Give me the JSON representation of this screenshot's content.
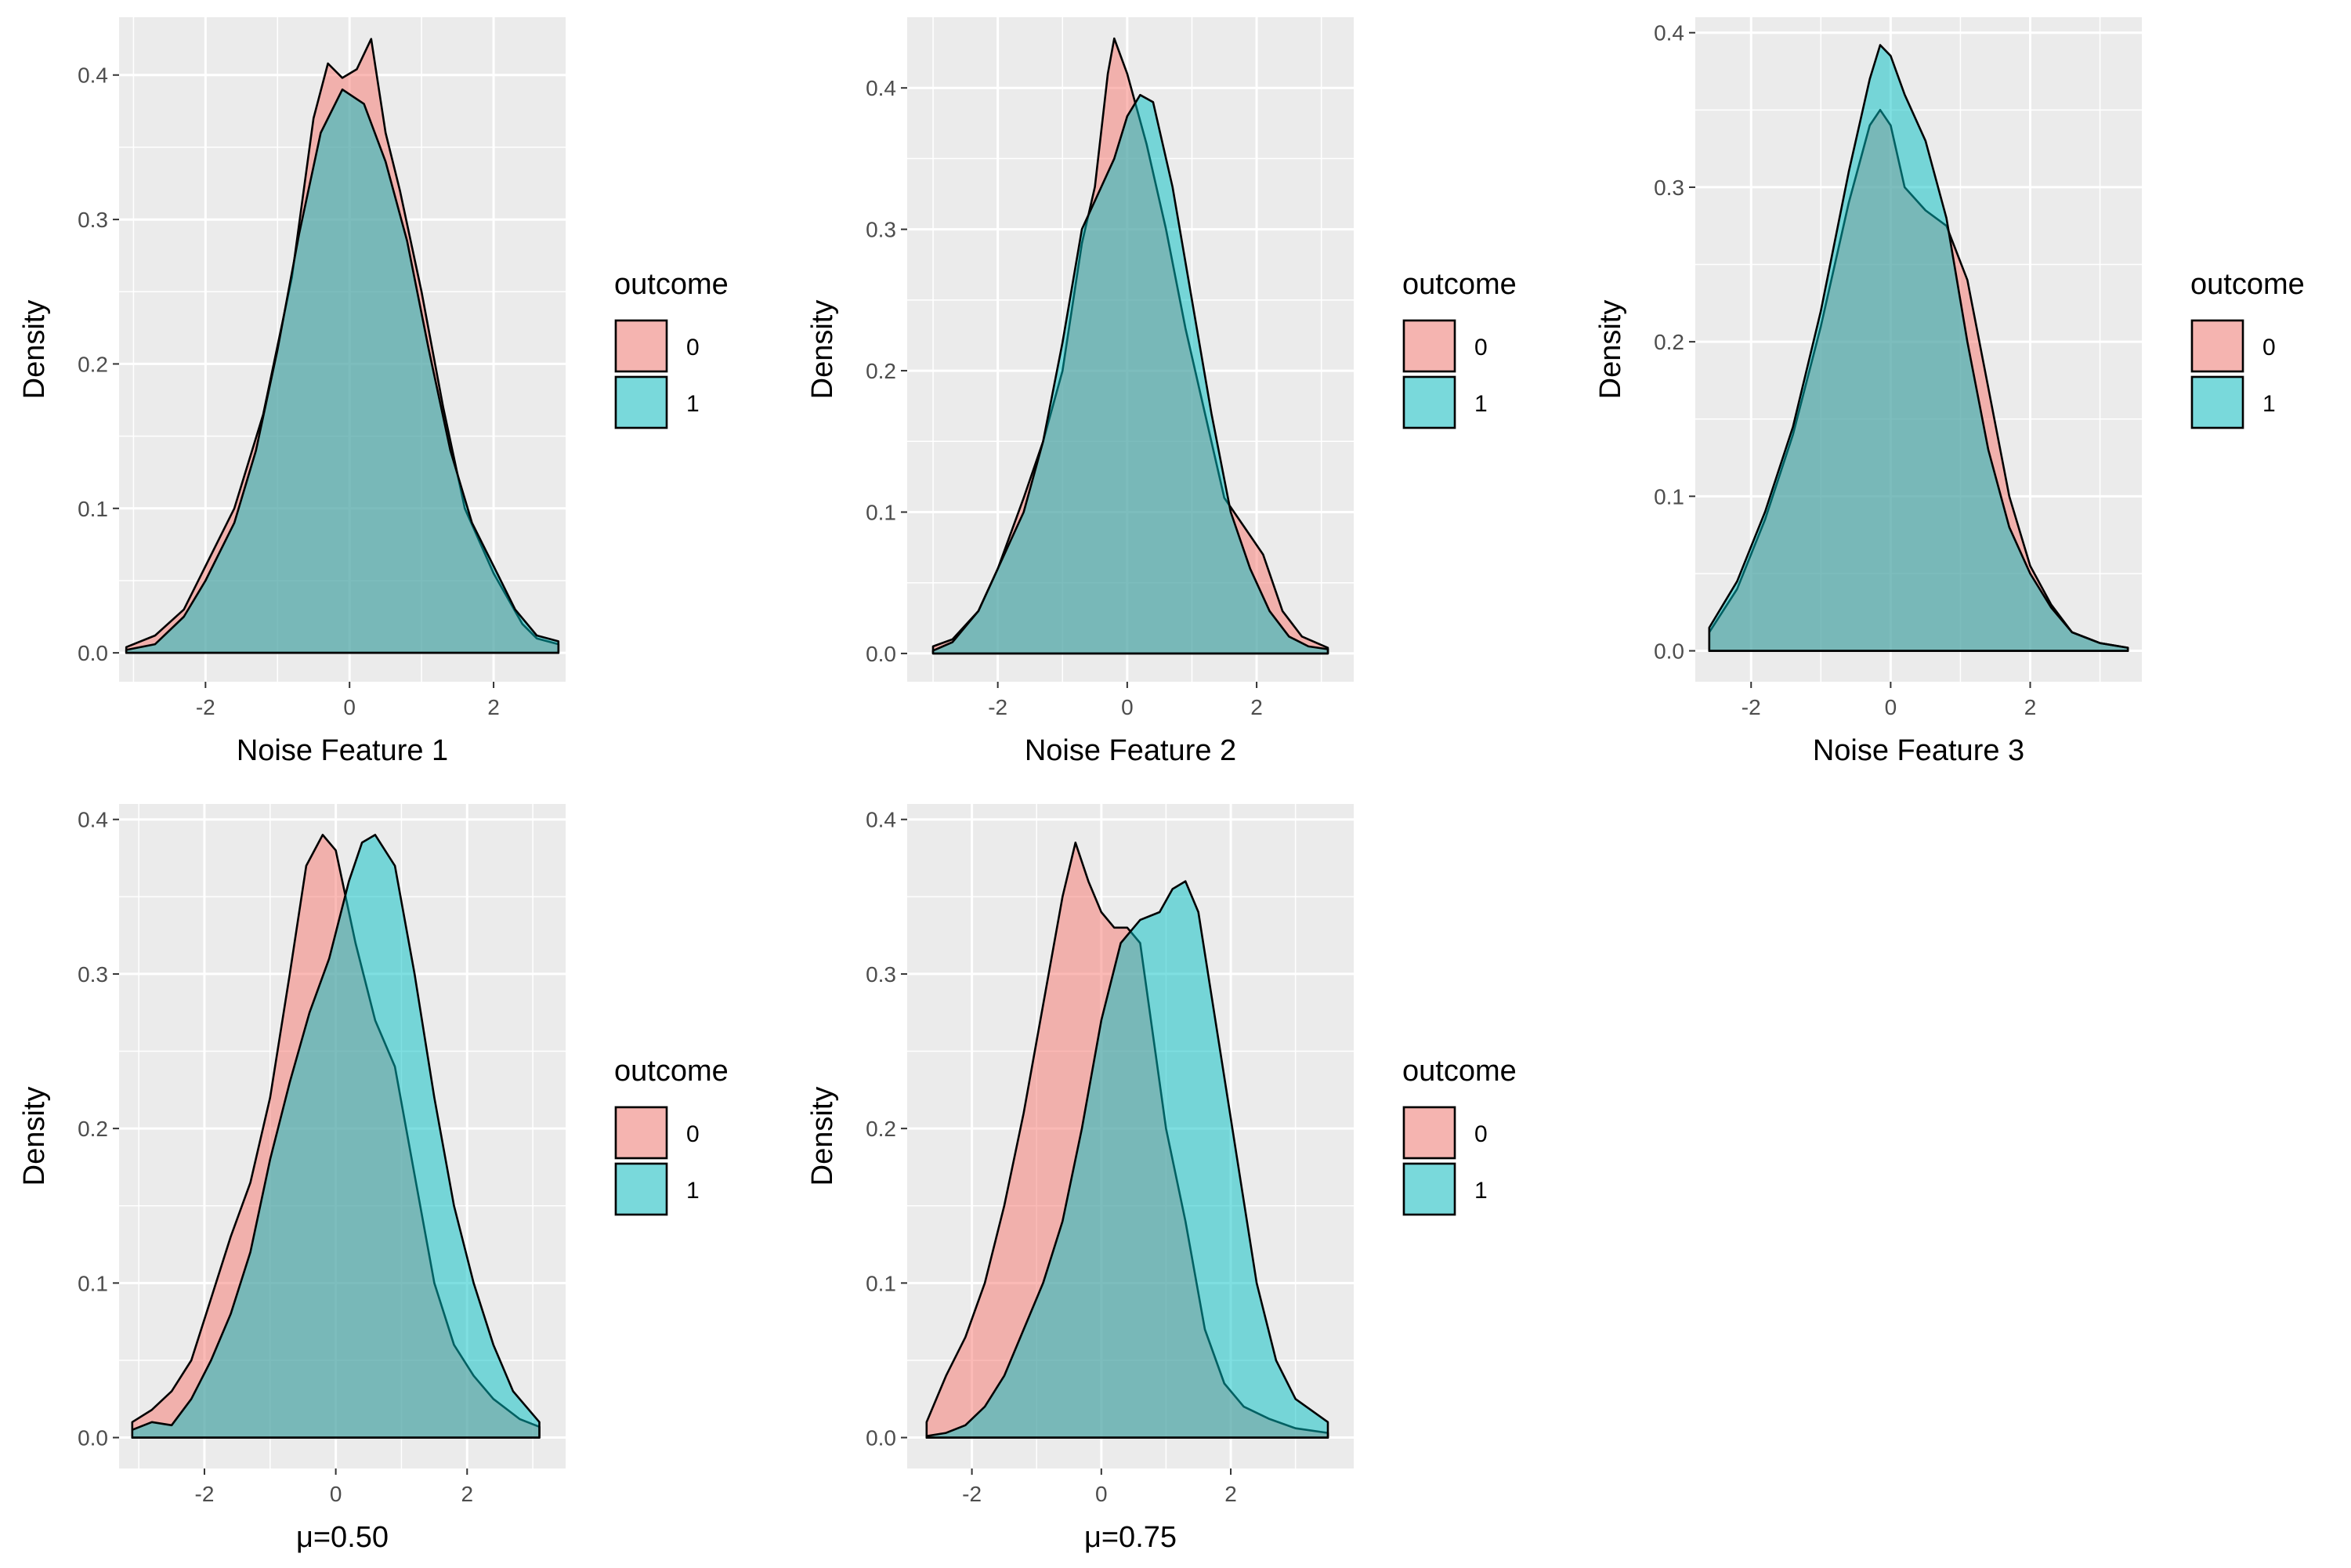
{
  "chart_data": [
    {
      "type": "area",
      "subtype": "density",
      "title": "",
      "xlabel": "Noise Feature 1",
      "ylabel": "Density",
      "xlim": [
        -3.2,
        3.0
      ],
      "ylim": [
        -0.02,
        0.44
      ],
      "xticks": [
        -2,
        0,
        2
      ],
      "xtick_labels": [
        "-2",
        "0",
        "2"
      ],
      "yticks": [
        0,
        0.1,
        0.2,
        0.3,
        0.4
      ],
      "ytick_labels": [
        "0.0",
        "0.1",
        "0.2",
        "0.3",
        "0.4"
      ],
      "legend": {
        "title": "outcome",
        "entries": [
          "0",
          "1"
        ],
        "position": "right"
      },
      "series": [
        {
          "name": "0",
          "color": "#F8766D",
          "x": [
            -3.1,
            -2.7,
            -2.3,
            -2.0,
            -1.6,
            -1.2,
            -0.8,
            -0.5,
            -0.3,
            -0.1,
            0.1,
            0.3,
            0.5,
            0.7,
            1.0,
            1.3,
            1.6,
            2.0,
            2.4,
            2.6,
            2.9
          ],
          "y": [
            0.004,
            0.012,
            0.03,
            0.06,
            0.1,
            0.165,
            0.26,
            0.37,
            0.408,
            0.398,
            0.404,
            0.425,
            0.36,
            0.32,
            0.25,
            0.17,
            0.1,
            0.055,
            0.02,
            0.01,
            0.006
          ]
        },
        {
          "name": "1",
          "color": "#00BFC4",
          "x": [
            -3.1,
            -2.7,
            -2.3,
            -2.0,
            -1.6,
            -1.3,
            -1.0,
            -0.7,
            -0.4,
            -0.1,
            0.2,
            0.5,
            0.8,
            1.1,
            1.4,
            1.7,
            2.0,
            2.3,
            2.6,
            2.9
          ],
          "y": [
            0.002,
            0.006,
            0.025,
            0.05,
            0.09,
            0.14,
            0.21,
            0.29,
            0.36,
            0.39,
            0.38,
            0.34,
            0.285,
            0.21,
            0.14,
            0.09,
            0.06,
            0.03,
            0.012,
            0.008
          ]
        }
      ]
    },
    {
      "type": "area",
      "subtype": "density",
      "title": "",
      "xlabel": "Noise Feature 2",
      "ylabel": "Density",
      "xlim": [
        -3.4,
        3.5
      ],
      "ylim": [
        -0.02,
        0.45
      ],
      "xticks": [
        -2,
        0,
        2
      ],
      "xtick_labels": [
        "-2",
        "0",
        "2"
      ],
      "yticks": [
        0,
        0.1,
        0.2,
        0.3,
        0.4
      ],
      "ytick_labels": [
        "0.0",
        "0.1",
        "0.2",
        "0.3",
        "0.4"
      ],
      "legend": {
        "title": "outcome",
        "entries": [
          "0",
          "1"
        ],
        "position": "right"
      },
      "series": [
        {
          "name": "0",
          "color": "#F8766D",
          "x": [
            -3.0,
            -2.7,
            -2.3,
            -2.0,
            -1.6,
            -1.3,
            -1.0,
            -0.7,
            -0.5,
            -0.3,
            -0.2,
            0.0,
            0.3,
            0.6,
            0.9,
            1.2,
            1.5,
            1.8,
            2.1,
            2.4,
            2.7,
            3.1
          ],
          "y": [
            0.005,
            0.01,
            0.03,
            0.06,
            0.11,
            0.15,
            0.2,
            0.29,
            0.33,
            0.41,
            0.435,
            0.41,
            0.36,
            0.3,
            0.23,
            0.17,
            0.11,
            0.09,
            0.07,
            0.03,
            0.012,
            0.004
          ]
        },
        {
          "name": "1",
          "color": "#00BFC4",
          "x": [
            -3.0,
            -2.7,
            -2.3,
            -2.0,
            -1.6,
            -1.3,
            -1.0,
            -0.7,
            -0.4,
            -0.2,
            0.0,
            0.2,
            0.4,
            0.7,
            1.0,
            1.3,
            1.6,
            1.9,
            2.2,
            2.5,
            2.8,
            3.1
          ],
          "y": [
            0.002,
            0.008,
            0.03,
            0.06,
            0.1,
            0.15,
            0.22,
            0.3,
            0.33,
            0.35,
            0.38,
            0.395,
            0.39,
            0.33,
            0.25,
            0.17,
            0.1,
            0.06,
            0.03,
            0.012,
            0.005,
            0.003
          ]
        }
      ]
    },
    {
      "type": "area",
      "subtype": "density",
      "title": "",
      "xlabel": "Noise Feature 3",
      "ylabel": "Density",
      "xlim": [
        -2.8,
        3.6
      ],
      "ylim": [
        -0.02,
        0.41
      ],
      "xticks": [
        -2,
        0,
        2
      ],
      "xtick_labels": [
        "-2",
        "0",
        "2"
      ],
      "yticks": [
        0,
        0.1,
        0.2,
        0.3,
        0.4
      ],
      "ytick_labels": [
        "0.0",
        "0.1",
        "0.2",
        "0.3",
        "0.4"
      ],
      "legend": {
        "title": "outcome",
        "entries": [
          "0",
          "1"
        ],
        "position": "right"
      },
      "series": [
        {
          "name": "0",
          "color": "#F8766D",
          "x": [
            -2.6,
            -2.2,
            -1.8,
            -1.4,
            -1.0,
            -0.6,
            -0.3,
            -0.15,
            0.0,
            0.2,
            0.5,
            0.8,
            1.1,
            1.4,
            1.7,
            2.0,
            2.3,
            2.6,
            3.0,
            3.4
          ],
          "y": [
            0.012,
            0.04,
            0.085,
            0.14,
            0.21,
            0.29,
            0.34,
            0.35,
            0.34,
            0.3,
            0.285,
            0.275,
            0.24,
            0.17,
            0.1,
            0.055,
            0.03,
            0.012,
            0.005,
            0.002
          ]
        },
        {
          "name": "1",
          "color": "#00BFC4",
          "x": [
            -2.6,
            -2.2,
            -1.8,
            -1.4,
            -1.0,
            -0.6,
            -0.3,
            -0.15,
            0.0,
            0.2,
            0.5,
            0.8,
            1.1,
            1.4,
            1.7,
            2.0,
            2.3,
            2.6,
            3.0,
            3.4
          ],
          "y": [
            0.015,
            0.045,
            0.09,
            0.145,
            0.22,
            0.31,
            0.37,
            0.392,
            0.385,
            0.36,
            0.33,
            0.28,
            0.2,
            0.13,
            0.08,
            0.05,
            0.028,
            0.012,
            0.005,
            0.002
          ]
        }
      ]
    },
    {
      "type": "area",
      "subtype": "density",
      "title": "",
      "xlabel": "μ=0.50",
      "ylabel": "Density",
      "xlim": [
        -3.3,
        3.5
      ],
      "ylim": [
        -0.02,
        0.41
      ],
      "xticks": [
        -2,
        0,
        2
      ],
      "xtick_labels": [
        "-2",
        "0",
        "2"
      ],
      "yticks": [
        0,
        0.1,
        0.2,
        0.3,
        0.4
      ],
      "ytick_labels": [
        "0.0",
        "0.1",
        "0.2",
        "0.3",
        "0.4"
      ],
      "legend": {
        "title": "outcome",
        "entries": [
          "0",
          "1"
        ],
        "position": "right"
      },
      "series": [
        {
          "name": "0",
          "color": "#F8766D",
          "x": [
            -3.1,
            -2.8,
            -2.5,
            -2.2,
            -1.9,
            -1.6,
            -1.3,
            -1.0,
            -0.7,
            -0.45,
            -0.2,
            0.0,
            0.3,
            0.6,
            0.9,
            1.2,
            1.5,
            1.8,
            2.1,
            2.4,
            2.8,
            3.1
          ],
          "y": [
            0.01,
            0.018,
            0.03,
            0.05,
            0.09,
            0.13,
            0.165,
            0.22,
            0.3,
            0.37,
            0.39,
            0.38,
            0.32,
            0.27,
            0.24,
            0.17,
            0.1,
            0.06,
            0.04,
            0.025,
            0.012,
            0.007
          ]
        },
        {
          "name": "1",
          "color": "#00BFC4",
          "x": [
            -3.1,
            -2.8,
            -2.5,
            -2.2,
            -1.9,
            -1.6,
            -1.3,
            -1.0,
            -0.7,
            -0.4,
            -0.1,
            0.2,
            0.4,
            0.6,
            0.9,
            1.2,
            1.5,
            1.8,
            2.1,
            2.4,
            2.7,
            3.1
          ],
          "y": [
            0.005,
            0.01,
            0.008,
            0.025,
            0.05,
            0.08,
            0.12,
            0.18,
            0.23,
            0.275,
            0.31,
            0.36,
            0.385,
            0.39,
            0.37,
            0.3,
            0.22,
            0.15,
            0.1,
            0.06,
            0.03,
            0.01
          ]
        }
      ]
    },
    {
      "type": "area",
      "subtype": "density",
      "title": "",
      "xlabel": "μ=0.75",
      "ylabel": "Density",
      "xlim": [
        -3.0,
        3.9
      ],
      "ylim": [
        -0.02,
        0.41
      ],
      "xticks": [
        -2,
        0,
        2
      ],
      "xtick_labels": [
        "-2",
        "0",
        "2"
      ],
      "yticks": [
        0,
        0.1,
        0.2,
        0.3,
        0.4
      ],
      "ytick_labels": [
        "0.0",
        "0.1",
        "0.2",
        "0.3",
        "0.4"
      ],
      "legend": {
        "title": "outcome",
        "entries": [
          "0",
          "1"
        ],
        "position": "right"
      },
      "series": [
        {
          "name": "0",
          "color": "#F8766D",
          "x": [
            -2.7,
            -2.4,
            -2.1,
            -1.8,
            -1.5,
            -1.2,
            -0.9,
            -0.6,
            -0.4,
            -0.2,
            0.0,
            0.2,
            0.4,
            0.6,
            0.8,
            1.0,
            1.3,
            1.6,
            1.9,
            2.2,
            2.6,
            3.0,
            3.5
          ],
          "y": [
            0.01,
            0.04,
            0.065,
            0.1,
            0.15,
            0.21,
            0.28,
            0.35,
            0.385,
            0.36,
            0.34,
            0.33,
            0.33,
            0.32,
            0.26,
            0.2,
            0.14,
            0.07,
            0.035,
            0.02,
            0.012,
            0.006,
            0.003
          ]
        },
        {
          "name": "1",
          "color": "#00BFC4",
          "x": [
            -2.7,
            -2.4,
            -2.1,
            -1.8,
            -1.5,
            -1.2,
            -0.9,
            -0.6,
            -0.3,
            0.0,
            0.3,
            0.6,
            0.9,
            1.1,
            1.3,
            1.5,
            1.8,
            2.1,
            2.4,
            2.7,
            3.0,
            3.5
          ],
          "y": [
            0.001,
            0.003,
            0.008,
            0.02,
            0.04,
            0.07,
            0.1,
            0.14,
            0.2,
            0.27,
            0.32,
            0.335,
            0.34,
            0.355,
            0.36,
            0.34,
            0.26,
            0.18,
            0.1,
            0.05,
            0.025,
            0.01
          ]
        }
      ]
    }
  ]
}
